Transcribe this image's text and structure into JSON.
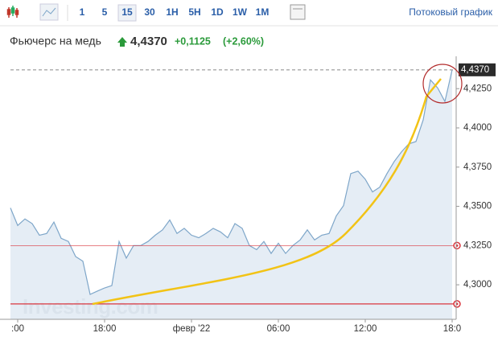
{
  "toolbar": {
    "intervals": [
      "1",
      "5",
      "15",
      "30",
      "1H",
      "5H",
      "1D",
      "1W",
      "1M"
    ],
    "active": "15",
    "stream_link": "Потоковый график"
  },
  "header": {
    "name": "Фьючерс на медь",
    "price": "4,4370",
    "change": "+0,1125",
    "change_pct": "(+2,60%)"
  },
  "chart_data": {
    "type": "line",
    "categories": [
      null,
      ":00",
      null,
      null,
      null,
      null,
      null,
      null,
      null,
      null,
      null,
      null,
      null,
      "18:00",
      null,
      null,
      null,
      null,
      null,
      null,
      null,
      null,
      null,
      null,
      null,
      "февр '22",
      null,
      null,
      null,
      null,
      null,
      null,
      null,
      null,
      null,
      null,
      null,
      "06:00",
      null,
      null,
      null,
      null,
      null,
      null,
      null,
      null,
      null,
      null,
      null,
      "12:00",
      null,
      null,
      null,
      null,
      null,
      null,
      null,
      null,
      null,
      null,
      null,
      "18:0"
    ],
    "series": [
      {
        "name": "Фьючерс на медь",
        "color": "#7ea6c9",
        "values": [
          4.349,
          4.3378,
          4.342,
          4.339,
          4.3316,
          4.3327,
          4.34,
          4.3296,
          4.3276,
          4.318,
          4.315,
          4.2939,
          4.296,
          4.298,
          4.2995,
          4.3276,
          4.317,
          4.325,
          4.325,
          4.3276,
          4.3316,
          4.335,
          4.3413,
          4.3327,
          4.336,
          4.3316,
          4.33,
          4.3327,
          4.336,
          4.3337,
          4.33,
          4.339,
          4.336,
          4.325,
          4.3224,
          4.3276,
          4.32,
          4.3265,
          4.32,
          4.325,
          4.3286,
          4.335,
          4.3286,
          4.3316,
          4.3327,
          4.3439,
          4.3505,
          4.3709,
          4.3724,
          4.3673,
          4.3592,
          4.3622,
          4.3709,
          4.3786,
          4.3847,
          4.3898,
          4.3913,
          4.4051,
          4.4306,
          4.4255,
          4.4168,
          4.437
        ]
      }
    ],
    "ylim": [
      4.278,
      4.4405
    ],
    "yticks": [
      {
        "value": 4.3,
        "label": "4,3000"
      },
      {
        "value": 4.325,
        "label": "4,3250"
      },
      {
        "value": 4.35,
        "label": "4,3500"
      },
      {
        "value": 4.375,
        "label": "4,3750"
      },
      {
        "value": 4.4,
        "label": "4,4000"
      },
      {
        "value": 4.425,
        "label": "4,4250"
      }
    ],
    "last_price": {
      "value": 4.437,
      "label": "4,4370"
    },
    "levels": [
      4.325,
      4.2878
    ],
    "level_color": "#d9363e",
    "watermark": "Investing.com"
  }
}
